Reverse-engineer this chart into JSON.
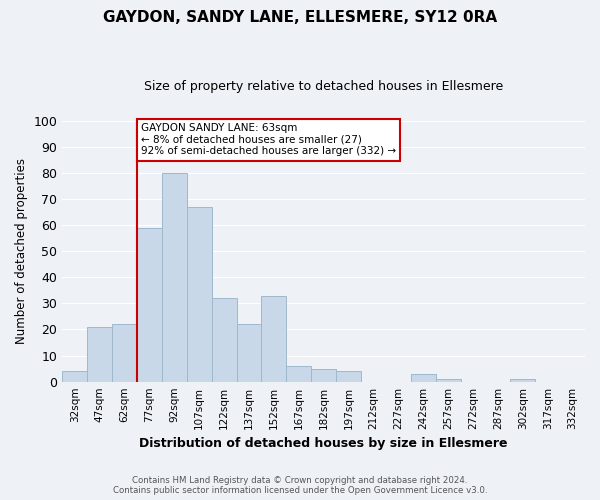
{
  "title": "GAYDON, SANDY LANE, ELLESMERE, SY12 0RA",
  "subtitle": "Size of property relative to detached houses in Ellesmere",
  "xlabel": "Distribution of detached houses by size in Ellesmere",
  "ylabel": "Number of detached properties",
  "bin_labels": [
    "32sqm",
    "47sqm",
    "62sqm",
    "77sqm",
    "92sqm",
    "107sqm",
    "122sqm",
    "137sqm",
    "152sqm",
    "167sqm",
    "182sqm",
    "197sqm",
    "212sqm",
    "227sqm",
    "242sqm",
    "257sqm",
    "272sqm",
    "287sqm",
    "302sqm",
    "317sqm",
    "332sqm"
  ],
  "bar_values": [
    4,
    21,
    22,
    59,
    80,
    67,
    32,
    22,
    33,
    6,
    5,
    4,
    0,
    0,
    3,
    1,
    0,
    0,
    1,
    0,
    0
  ],
  "bar_color": "#c8d8e8",
  "bar_edge_color": "#a0b8cc",
  "property_line_after_idx": 2,
  "property_line_color": "#cc0000",
  "annotation_title": "GAYDON SANDY LANE: 63sqm",
  "annotation_line1": "← 8% of detached houses are smaller (27)",
  "annotation_line2": "92% of semi-detached houses are larger (332) →",
  "annotation_box_color": "#ffffff",
  "annotation_box_edge_color": "#cc0000",
  "ylim": [
    0,
    100
  ],
  "yticks": [
    0,
    10,
    20,
    30,
    40,
    50,
    60,
    70,
    80,
    90,
    100
  ],
  "background_color": "#eef2f7",
  "grid_color": "#ffffff",
  "footer_line1": "Contains HM Land Registry data © Crown copyright and database right 2024.",
  "footer_line2": "Contains public sector information licensed under the Open Government Licence v3.0."
}
